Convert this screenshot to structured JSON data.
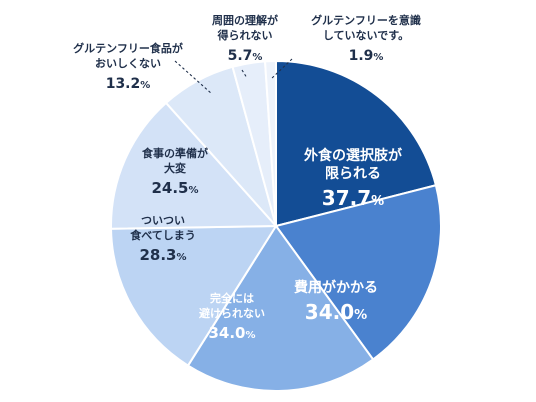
{
  "chart_data": {
    "type": "pie",
    "unit": "%",
    "slices": [
      {
        "label": [
          "外食の選択肢が",
          "限られる"
        ],
        "value": 37.7,
        "color": "#134d95",
        "text_color": "light",
        "outside": false
      },
      {
        "label": [
          "費用がかかる"
        ],
        "value": 34.0,
        "color": "#4a82cf",
        "text_color": "light",
        "outside": false
      },
      {
        "label": [
          "完全には",
          "避けられない"
        ],
        "value": 34.0,
        "color": "#86b0e6",
        "text_color": "light",
        "outside": false
      },
      {
        "label": [
          "ついつい",
          "食べてしまう"
        ],
        "value": 28.3,
        "color": "#bcd4f3",
        "text_color": "dark",
        "outside": false
      },
      {
        "label": [
          "食事の準備が",
          "大変"
        ],
        "value": 24.5,
        "color": "#d3e2f7",
        "text_color": "dark",
        "outside": false
      },
      {
        "label": [
          "グルテンフリー食品が",
          "おいしくない"
        ],
        "value": 13.2,
        "color": "#dce8f8",
        "text_color": "dark",
        "outside": true
      },
      {
        "label": [
          "周囲の理解が",
          "得られない"
        ],
        "value": 5.7,
        "color": "#e6eefa",
        "text_color": "dark",
        "outside": true
      },
      {
        "label": [
          "グルテンフリーを意識",
          "していないです。"
        ],
        "value": 1.9,
        "color": "#eef3fb",
        "text_color": "dark",
        "outside": true
      }
    ]
  }
}
